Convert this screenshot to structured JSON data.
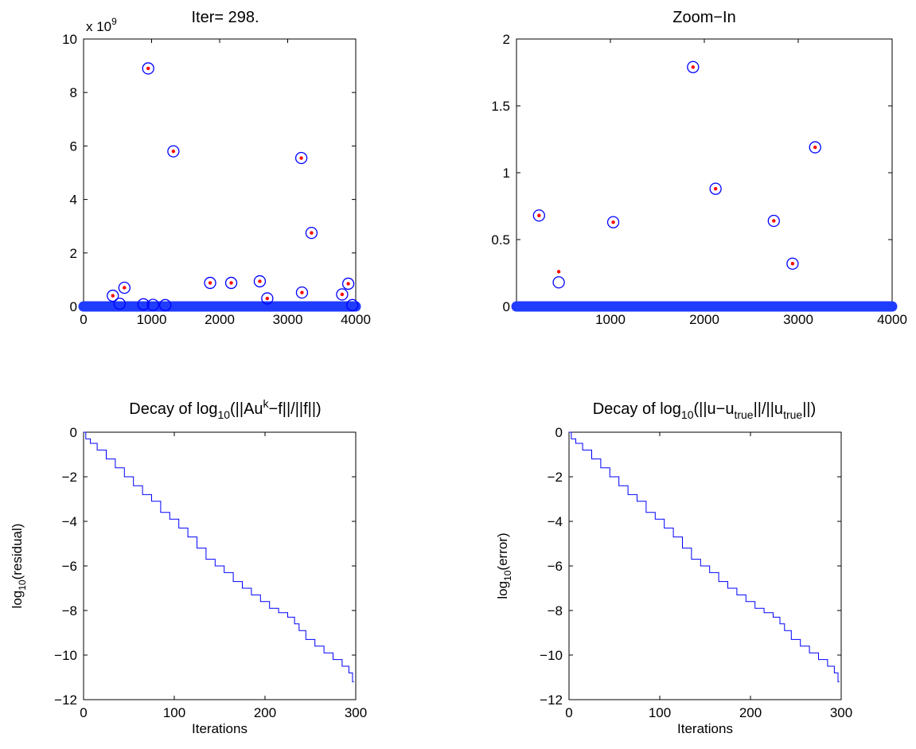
{
  "chart_data": [
    {
      "type": "scatter",
      "title": "Iter= 298.",
      "xlim": [
        0,
        4000
      ],
      "ylim": [
        0,
        10
      ],
      "y_scale_label": "x 10",
      "y_scale_exponent": "9",
      "x_ticks": [
        "0",
        "1000",
        "2000",
        "3000",
        "4000"
      ],
      "y_ticks": [
        "0",
        "2",
        "4",
        "6",
        "8",
        "10"
      ],
      "grid": false,
      "baseline": {
        "x_from": 0,
        "x_to": 4000,
        "y": 0,
        "color": "#1f3cff"
      },
      "series": [
        {
          "marker": "open-circle",
          "color": "#0000ff",
          "points": [
            [
              430,
              0.4
            ],
            [
              600,
              0.7
            ],
            [
              950,
              8.9
            ],
            [
              1320,
              5.8
            ],
            [
              1860,
              0.88
            ],
            [
              2170,
              0.88
            ],
            [
              2590,
              0.94
            ],
            [
              3200,
              5.55
            ],
            [
              3210,
              0.52
            ],
            [
              3350,
              2.75
            ],
            [
              3800,
              0.45
            ],
            [
              3890,
              0.85
            ],
            [
              2700,
              0.3
            ],
            [
              880,
              0.08
            ],
            [
              1020,
              0.06
            ],
            [
              1200,
              0.05
            ],
            [
              530,
              0.1
            ],
            [
              3950,
              0.05
            ]
          ]
        },
        {
          "marker": "dot",
          "color": "#ff0000",
          "points": [
            [
              430,
              0.4
            ],
            [
              600,
              0.7
            ],
            [
              950,
              8.9
            ],
            [
              1320,
              5.8
            ],
            [
              1860,
              0.88
            ],
            [
              2170,
              0.88
            ],
            [
              2590,
              0.94
            ],
            [
              3200,
              5.55
            ],
            [
              3210,
              0.52
            ],
            [
              3350,
              2.75
            ],
            [
              3800,
              0.45
            ],
            [
              3890,
              0.85
            ],
            [
              2700,
              0.3
            ]
          ]
        }
      ]
    },
    {
      "type": "scatter",
      "title": "Zoom−In",
      "xlim": [
        0,
        4000
      ],
      "ylim": [
        0,
        2
      ],
      "x_ticks": [
        "1000",
        "2000",
        "3000",
        "4000"
      ],
      "x_tick_values": [
        1000,
        2000,
        3000,
        4000
      ],
      "y_ticks": [
        "0",
        "0.5",
        "1",
        "1.5",
        "2"
      ],
      "grid": false,
      "baseline": {
        "x_from": 0,
        "x_to": 4000,
        "y": 0,
        "color": "#1f3cff"
      },
      "series": [
        {
          "marker": "open-circle",
          "color": "#0000ff",
          "points": [
            [
              240,
              0.68
            ],
            [
              450,
              0.18
            ],
            [
              1030,
              0.63
            ],
            [
              1880,
              1.79
            ],
            [
              2120,
              0.88
            ],
            [
              2740,
              0.64
            ],
            [
              2940,
              0.32
            ],
            [
              3180,
              1.19
            ]
          ]
        },
        {
          "marker": "dot",
          "color": "#ff0000",
          "points": [
            [
              240,
              0.68
            ],
            [
              450,
              0.26
            ],
            [
              1030,
              0.63
            ],
            [
              1880,
              1.79
            ],
            [
              2120,
              0.88
            ],
            [
              2740,
              0.64
            ],
            [
              2940,
              0.32
            ],
            [
              3180,
              1.19
            ]
          ]
        }
      ]
    },
    {
      "type": "line",
      "title": "Decay of log",
      "title_sub": "10",
      "title_rest1": "(||Au",
      "title_sup": "k",
      "title_rest2": "−f||/||f||)",
      "xlabel": "Iterations",
      "ylabel": "log",
      "ylabel_sub": "10",
      "ylabel_rest": "(residual)",
      "xlim": [
        0,
        300
      ],
      "ylim": [
        -12,
        0
      ],
      "x_ticks": [
        "0",
        "100",
        "200",
        "300"
      ],
      "y_ticks": [
        "0",
        "−2",
        "−4",
        "−6",
        "−8",
        "−10",
        "−12"
      ],
      "grid": false,
      "series": [
        {
          "color": "#0000ff",
          "x": [
            0,
            5,
            10,
            20,
            30,
            40,
            50,
            60,
            70,
            80,
            90,
            100,
            110,
            120,
            130,
            140,
            150,
            160,
            170,
            180,
            190,
            200,
            210,
            220,
            230,
            235,
            240,
            250,
            260,
            270,
            280,
            290,
            295,
            298
          ],
          "y": [
            0,
            -0.3,
            -0.5,
            -0.8,
            -1.2,
            -1.6,
            -2.0,
            -2.4,
            -2.8,
            -3.1,
            -3.6,
            -3.9,
            -4.3,
            -4.7,
            -5.2,
            -5.7,
            -6.0,
            -6.3,
            -6.7,
            -7.0,
            -7.3,
            -7.6,
            -7.9,
            -8.1,
            -8.3,
            -8.6,
            -8.9,
            -9.3,
            -9.6,
            -9.9,
            -10.2,
            -10.5,
            -10.8,
            -11.2
          ]
        }
      ]
    },
    {
      "type": "line",
      "title": "Decay of log",
      "title_sub": "10",
      "title_rest1": "(||u−u",
      "title_sub2": "true",
      "title_rest2": "||/||u",
      "title_sub3": "true",
      "title_rest3": "||)",
      "xlabel": "Iterations",
      "ylabel": "log",
      "ylabel_sub": "10",
      "ylabel_rest": "(error)",
      "xlim": [
        0,
        300
      ],
      "ylim": [
        -12,
        0
      ],
      "x_ticks": [
        "0",
        "100",
        "200",
        "300"
      ],
      "y_ticks": [
        "0",
        "−2",
        "−4",
        "−6",
        "−8",
        "−10",
        "−12"
      ],
      "grid": false,
      "series": [
        {
          "color": "#0000ff",
          "x": [
            0,
            5,
            10,
            20,
            30,
            40,
            50,
            60,
            70,
            80,
            90,
            100,
            110,
            120,
            130,
            140,
            150,
            160,
            170,
            180,
            190,
            200,
            210,
            220,
            230,
            235,
            240,
            250,
            260,
            270,
            280,
            290,
            295,
            298
          ],
          "y": [
            0,
            -0.3,
            -0.5,
            -0.8,
            -1.2,
            -1.6,
            -2.0,
            -2.4,
            -2.8,
            -3.1,
            -3.6,
            -3.9,
            -4.3,
            -4.7,
            -5.2,
            -5.7,
            -6.0,
            -6.3,
            -6.7,
            -7.0,
            -7.3,
            -7.6,
            -7.9,
            -8.1,
            -8.3,
            -8.6,
            -8.9,
            -9.3,
            -9.6,
            -9.9,
            -10.2,
            -10.5,
            -10.8,
            -11.2
          ]
        }
      ]
    }
  ]
}
